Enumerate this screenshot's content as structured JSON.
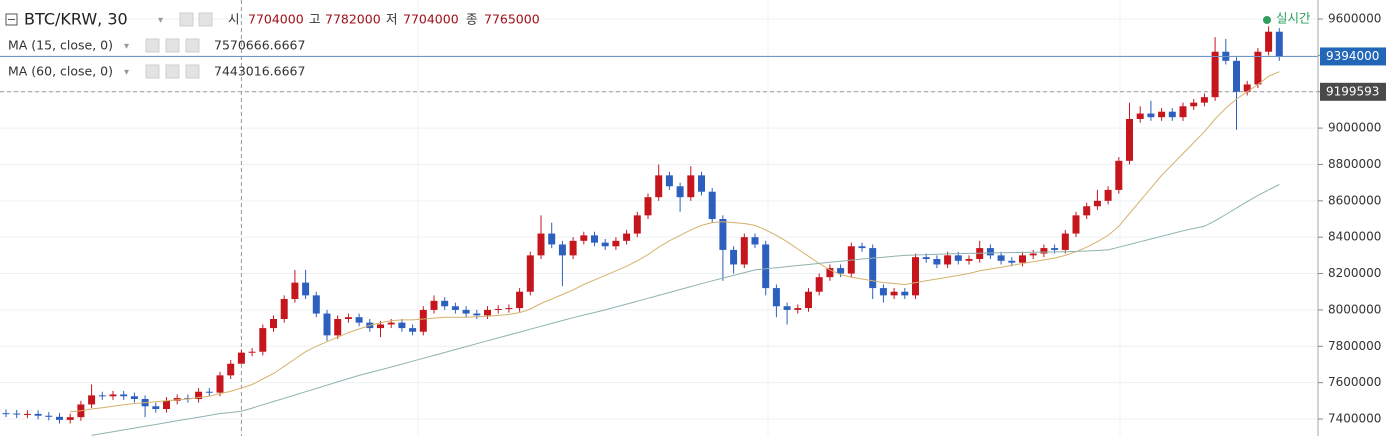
{
  "chart_data": {
    "type": "candlestick",
    "title": "BTC/KRW, 30",
    "ohlc_labels": [
      "시",
      "고",
      "저",
      "종"
    ],
    "realtime_label": "실시간",
    "up_color": "#c4161c",
    "down_color": "#2d5fbf",
    "ylim": [
      7306500,
      9704500
    ],
    "yticks": [
      7400000,
      7600000,
      7800000,
      8000000,
      8200000,
      8400000,
      8600000,
      8800000,
      9000000,
      9200000,
      9400000,
      9600000
    ],
    "grid": true,
    "last_price": 9394000,
    "crosshair_price": 9199593,
    "open": [
      7432000,
      7430000,
      7425000,
      7428000,
      7418000,
      7412000,
      7395000,
      7410000,
      7480000,
      7530000,
      7525000,
      7535000,
      7525000,
      7510000,
      7470000,
      7455000,
      7500000,
      7515000,
      7510000,
      7550000,
      7545000,
      7640000,
      7704000,
      7765000,
      7770000,
      7900000,
      7950000,
      8060000,
      8150000,
      8080000,
      7980000,
      7860000,
      7950000,
      7960000,
      7930000,
      7900000,
      7920000,
      7930000,
      7900000,
      7880000,
      8000000,
      8050000,
      8020000,
      8000000,
      7980000,
      7970000,
      8000000,
      8005000,
      8010000,
      8100000,
      8300000,
      8420000,
      8360000,
      8300000,
      8380000,
      8410000,
      8370000,
      8350000,
      8380000,
      8420000,
      8520000,
      8620000,
      8740000,
      8680000,
      8620000,
      8740000,
      8650000,
      8500000,
      8330000,
      8250000,
      8400000,
      8360000,
      8120000,
      8020000,
      8000000,
      8010000,
      8100000,
      8180000,
      8230000,
      8200000,
      8350000,
      8340000,
      8120000,
      8080000,
      8100000,
      8080000,
      8290000,
      8280000,
      8250000,
      8300000,
      8270000,
      8280000,
      8340000,
      8300000,
      8270000,
      8260000,
      8300000,
      8310000,
      8340000,
      8330000,
      8420000,
      8520000,
      8570000,
      8600000,
      8660000,
      8820000,
      9050000,
      9080000,
      9060000,
      9090000,
      9060000,
      9120000,
      9140000,
      9170000,
      9420000,
      9370000,
      9200000,
      9240000,
      9420000,
      9530000
    ],
    "high": [
      7452000,
      7450000,
      7448000,
      7448000,
      7438000,
      7432000,
      7430000,
      7500000,
      7590000,
      7550000,
      7555000,
      7555000,
      7545000,
      7530000,
      7490000,
      7520000,
      7535000,
      7535000,
      7570000,
      7570000,
      7660000,
      7724000,
      7782000,
      7790000,
      7920000,
      7970000,
      8080000,
      8220000,
      8220000,
      8100000,
      8000000,
      7970000,
      7980000,
      7980000,
      7950000,
      7940000,
      7950000,
      7950000,
      7920000,
      8020000,
      8080000,
      8070000,
      8040000,
      8020000,
      8000000,
      8020000,
      8025000,
      8030000,
      8120000,
      8320000,
      8520000,
      8480000,
      8380000,
      8400000,
      8430000,
      8430000,
      8390000,
      8400000,
      8440000,
      8540000,
      8640000,
      8800000,
      8760000,
      8700000,
      8790000,
      8760000,
      8670000,
      8520000,
      8350000,
      8420000,
      8420000,
      8380000,
      8140000,
      8040000,
      8030000,
      8120000,
      8200000,
      8250000,
      8250000,
      8370000,
      8370000,
      8360000,
      8140000,
      8120000,
      8120000,
      8310000,
      8310000,
      8300000,
      8320000,
      8320000,
      8300000,
      8380000,
      8360000,
      8320000,
      8290000,
      8320000,
      8330000,
      8360000,
      8360000,
      8440000,
      8540000,
      8590000,
      8660000,
      8680000,
      8840000,
      9140000,
      9120000,
      9150000,
      9110000,
      9110000,
      9140000,
      9160000,
      9190000,
      9500000,
      9490000,
      9390000,
      9260000,
      9440000,
      9560000,
      9550000
    ],
    "low": [
      7410000,
      7405000,
      7405000,
      7398000,
      7392000,
      7375000,
      7375000,
      7390000,
      7460000,
      7505000,
      7505000,
      7505000,
      7490000,
      7410000,
      7435000,
      7435000,
      7480000,
      7490000,
      7490000,
      7525000,
      7525000,
      7620000,
      7704000,
      7745000,
      7750000,
      7880000,
      7930000,
      8040000,
      8060000,
      7960000,
      7830000,
      7840000,
      7930000,
      7910000,
      7880000,
      7850000,
      7900000,
      7880000,
      7860000,
      7860000,
      7980000,
      8000000,
      7980000,
      7960000,
      7950000,
      7950000,
      7980000,
      7985000,
      7990000,
      8080000,
      8280000,
      8340000,
      8130000,
      8280000,
      8360000,
      8350000,
      8330000,
      8330000,
      8360000,
      8400000,
      8500000,
      8600000,
      8660000,
      8540000,
      8600000,
      8630000,
      8480000,
      8160000,
      8200000,
      8230000,
      8340000,
      8080000,
      7960000,
      7920000,
      7980000,
      7990000,
      8080000,
      8160000,
      8180000,
      8180000,
      8320000,
      8060000,
      8040000,
      8060000,
      8060000,
      8060000,
      8260000,
      8230000,
      8230000,
      8250000,
      8250000,
      8260000,
      8280000,
      8250000,
      8240000,
      8240000,
      8280000,
      8290000,
      8310000,
      8310000,
      8400000,
      8500000,
      8550000,
      8580000,
      8640000,
      8800000,
      9030000,
      9040000,
      9040000,
      9040000,
      9040000,
      9100000,
      9120000,
      9150000,
      9350000,
      8990000,
      9180000,
      9220000,
      9400000,
      9370000
    ],
    "close": [
      7430000,
      7425000,
      7428000,
      7418000,
      7412000,
      7395000,
      7410000,
      7480000,
      7530000,
      7525000,
      7535000,
      7525000,
      7510000,
      7470000,
      7455000,
      7500000,
      7515000,
      7510000,
      7550000,
      7545000,
      7640000,
      7704000,
      7765000,
      7770000,
      7900000,
      7950000,
      8060000,
      8150000,
      8080000,
      7980000,
      7860000,
      7950000,
      7960000,
      7930000,
      7900000,
      7920000,
      7930000,
      7900000,
      7880000,
      8000000,
      8050000,
      8020000,
      8000000,
      7980000,
      7970000,
      8000000,
      8005000,
      8010000,
      8100000,
      8300000,
      8420000,
      8360000,
      8300000,
      8380000,
      8410000,
      8370000,
      8350000,
      8380000,
      8420000,
      8520000,
      8620000,
      8740000,
      8680000,
      8620000,
      8740000,
      8650000,
      8500000,
      8330000,
      8250000,
      8400000,
      8360000,
      8120000,
      8020000,
      8000000,
      8010000,
      8100000,
      8180000,
      8230000,
      8200000,
      8350000,
      8340000,
      8120000,
      8080000,
      8100000,
      8080000,
      8290000,
      8280000,
      8250000,
      8300000,
      8270000,
      8280000,
      8340000,
      8300000,
      8270000,
      8260000,
      8300000,
      8310000,
      8340000,
      8330000,
      8420000,
      8520000,
      8570000,
      8600000,
      8660000,
      8820000,
      9050000,
      9080000,
      9060000,
      9090000,
      9060000,
      9120000,
      9140000,
      9170000,
      9420000,
      9370000,
      9200000,
      9240000,
      9420000,
      9530000,
      9394000
    ],
    "series": [
      {
        "name": "MA (15, close, 0)",
        "color": "#d4b26a",
        "values": [
          null,
          null,
          null,
          null,
          null,
          null,
          7440000,
          7445000,
          7455000,
          7462000,
          7470000,
          7478000,
          7485000,
          7490000,
          7495000,
          7500000,
          7505000,
          7510000,
          7518000,
          7525000,
          7540000,
          7552000,
          7570666.6667,
          7590000,
          7620000,
          7650000,
          7690000,
          7730000,
          7770000,
          7800000,
          7825000,
          7850000,
          7875000,
          7895000,
          7915000,
          7930000,
          7940000,
          7945000,
          7945000,
          7950000,
          7955000,
          7960000,
          7960000,
          7960000,
          7962000,
          7965000,
          7970000,
          7975000,
          7985000,
          8005000,
          8035000,
          8060000,
          8085000,
          8110000,
          8140000,
          8165000,
          8190000,
          8215000,
          8240000,
          8270000,
          8305000,
          8345000,
          8380000,
          8410000,
          8440000,
          8465000,
          8480000,
          8485000,
          8480000,
          8475000,
          8465000,
          8440000,
          8410000,
          8375000,
          8335000,
          8295000,
          8255000,
          8220000,
          8195000,
          8180000,
          8170000,
          8160000,
          8150000,
          8145000,
          8140000,
          8150000,
          8160000,
          8170000,
          8180000,
          8190000,
          8200000,
          8215000,
          8225000,
          8235000,
          8245000,
          8255000,
          8265000,
          8275000,
          8285000,
          8300000,
          8320000,
          8345000,
          8375000,
          8410000,
          8460000,
          8530000,
          8600000,
          8670000,
          8740000,
          8800000,
          8860000,
          8920000,
          8980000,
          9050000,
          9110000,
          9160000,
          9200000,
          9240000,
          9285000,
          9310000
        ]
      },
      {
        "name": "MA (60, close, 0)",
        "color": "#8fb3b0",
        "values": [
          null,
          null,
          null,
          null,
          null,
          null,
          null,
          null,
          7310000,
          7320000,
          7330000,
          7340000,
          7350000,
          7360000,
          7370000,
          7380000,
          7390000,
          7400000,
          7410000,
          7420000,
          7430000,
          7436000,
          7443016.6667,
          7460000,
          7478000,
          7496000,
          7514000,
          7532000,
          7550000,
          7568000,
          7586000,
          7604000,
          7622000,
          7640000,
          7655000,
          7670000,
          7686000,
          7702000,
          7718000,
          7734000,
          7750000,
          7766000,
          7782000,
          7798000,
          7814000,
          7830000,
          7846000,
          7862000,
          7878000,
          7894000,
          7910000,
          7926000,
          7942000,
          7957000,
          7972000,
          7986000,
          8000000,
          8016000,
          8032000,
          8048000,
          8064000,
          8080000,
          8096000,
          8112000,
          8128000,
          8144000,
          8160000,
          8175000,
          8190000,
          8205000,
          8220000,
          8226000,
          8232000,
          8238000,
          8244000,
          8250000,
          8256000,
          8262000,
          8268000,
          8274000,
          8280000,
          8285000,
          8290000,
          8295000,
          8300000,
          8302000,
          8304000,
          8306000,
          8308000,
          8310000,
          8311000,
          8312000,
          8313000,
          8314000,
          8315000,
          8316000,
          8317000,
          8318000,
          8319000,
          8320000,
          8322000,
          8324000,
          8327000,
          8330000,
          8345000,
          8360000,
          8375000,
          8390000,
          8405000,
          8420000,
          8435000,
          8448000,
          8460000,
          8490000,
          8525000,
          8560000,
          8595000,
          8630000,
          8660000,
          8690000
        ]
      }
    ]
  }
}
